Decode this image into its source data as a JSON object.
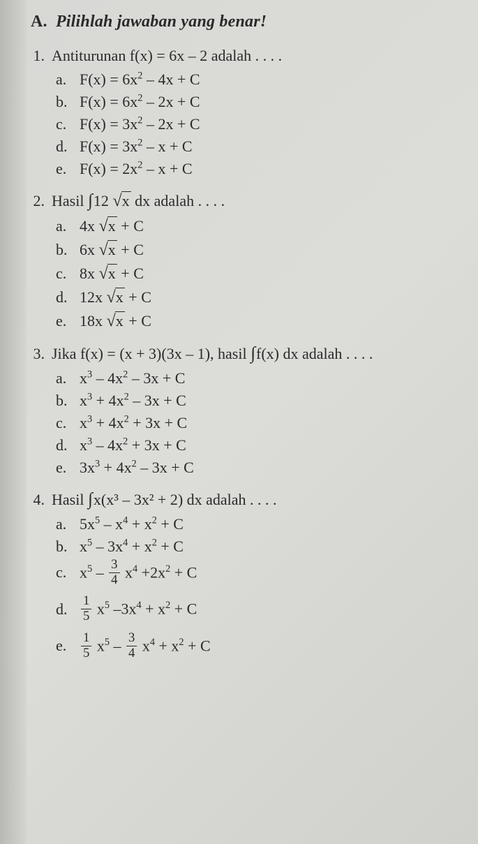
{
  "header": {
    "prefix": "A.",
    "title": "Pilihlah jawaban yang benar!"
  },
  "questions": [
    {
      "num": "1.",
      "text_pre": "Antiturunan f(x) = 6x – 2 adalah . . . .",
      "opts": [
        {
          "l": "a.",
          "m": "F(x) = 6x² – 4x + C"
        },
        {
          "l": "b.",
          "m": "F(x) = 6x² – 2x + C"
        },
        {
          "l": "c.",
          "m": "F(x) = 3x² – 2x + C"
        },
        {
          "l": "d.",
          "m": "F(x) = 3x² – x + C"
        },
        {
          "l": "e.",
          "m": "F(x) = 2x² – x + C"
        }
      ]
    },
    {
      "num": "2.",
      "text_pre": "Hasil ",
      "int": "∫",
      "after_int": "12 ",
      "sqrt_arg": "x",
      "after_sqrt": " dx adalah . . . .",
      "opts_sqrt": [
        {
          "l": "a.",
          "pre": "4x ",
          "arg": "x",
          "post": " + C"
        },
        {
          "l": "b.",
          "pre": "6x ",
          "arg": "x",
          "post": " + C"
        },
        {
          "l": "c.",
          "pre": "8x ",
          "arg": "x",
          "post": " + C"
        },
        {
          "l": "d.",
          "pre": "12x ",
          "arg": "x",
          "post": " + C"
        },
        {
          "l": "e.",
          "pre": "18x ",
          "arg": "x",
          "post": " + C"
        }
      ]
    },
    {
      "num": "3.",
      "text_pre": "Jika f(x) = (x + 3)(3x – 1), hasil ",
      "int": "∫",
      "after_int": "f(x) dx adalah . . . .",
      "opts": [
        {
          "l": "a.",
          "m": "x³ – 4x² – 3x + C"
        },
        {
          "l": "b.",
          "m": "x³ + 4x² – 3x + C"
        },
        {
          "l": "c.",
          "m": "x³ + 4x² + 3x + C"
        },
        {
          "l": "d.",
          "m": "x³ – 4x² + 3x + C"
        },
        {
          "l": "e.",
          "m": "3x³ + 4x² – 3x + C"
        }
      ]
    },
    {
      "num": "4.",
      "text_pre": "Hasil ",
      "int": "∫",
      "after_int": "x(x³ – 3x² + 2) dx adalah . . . .",
      "opts_plain": [
        {
          "l": "a.",
          "m": "5x⁵ – x⁴ + x² + C"
        },
        {
          "l": "b.",
          "m": "x⁵ – 3x⁴ + x² + C"
        }
      ],
      "opts_frac": [
        {
          "l": "c.",
          "parts": [
            {
              "t": "x⁵ – "
            },
            {
              "frac": {
                "n": "3",
                "d": "4"
              }
            },
            {
              "t": " x⁴ +2x² + C"
            }
          ]
        },
        {
          "l": "d.",
          "parts": [
            {
              "frac": {
                "n": "1",
                "d": "5"
              }
            },
            {
              "t": " x⁵ –3x⁴ + x² + C"
            }
          ]
        },
        {
          "l": "e.",
          "parts": [
            {
              "frac": {
                "n": "1",
                "d": "5"
              }
            },
            {
              "t": " x⁵ – "
            },
            {
              "frac": {
                "n": "3",
                "d": "4"
              }
            },
            {
              "t": " x⁴ + x² + C"
            }
          ]
        }
      ]
    }
  ]
}
